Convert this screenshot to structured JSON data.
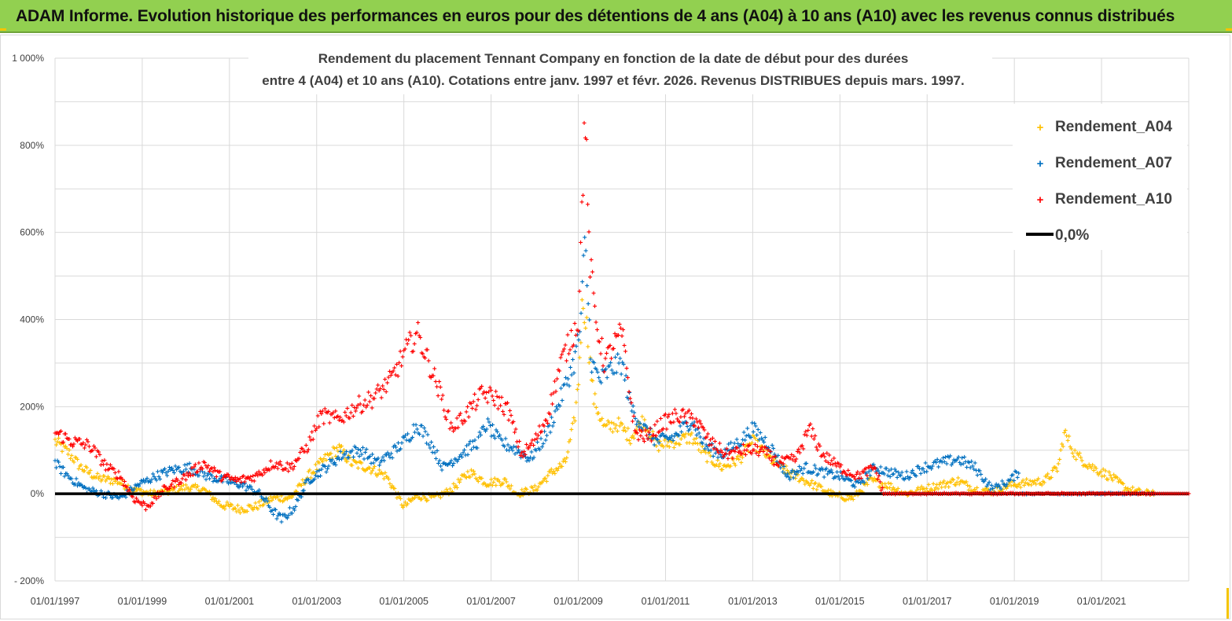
{
  "banner": {
    "title": "ADAM Informe. Evolution historique des performances en euros pour des détentions de 4 ans (A04) à 10 ans (A10) avec les revenus connus distribués"
  },
  "colors": {
    "banner_bg": "#92d050",
    "a04": "#ffc000",
    "a07": "#0070c0",
    "a10": "#ff0000",
    "zero_line": "#000000",
    "grid": "#d9d9d9"
  },
  "chart_data": {
    "type": "scatter",
    "title_lines": [
      "Rendement du placement Tennant Company en fonction de la date de début pour des durées",
      "entre 4 (A04) et 10 ans (A10).  Cotations entre janv. 1997 et févr. 2026. Revenus DISTRIBUES depuis mars. 1997."
    ],
    "y_ticks": [
      "1 000%",
      "800%",
      "600%",
      "400%",
      "200%",
      "0%",
      "- 200%"
    ],
    "y_range": [
      -200,
      1000
    ],
    "x_ticks": [
      "01/01/1997",
      "01/01/1999",
      "01/01/2001",
      "01/01/2003",
      "01/01/2005",
      "01/01/2007",
      "01/01/2009",
      "01/01/2011",
      "01/01/2013",
      "01/01/2015",
      "01/01/2017",
      "01/01/2019",
      "01/01/2021"
    ],
    "x_range": [
      1997.0,
      2023.0
    ],
    "grid": true,
    "legend_position": "top-right",
    "zero_line": {
      "name": "0,0%",
      "value": 0
    },
    "series": [
      {
        "name": "Rendement_A04",
        "color": "#ffc000",
        "end_year": 2022.2,
        "points": [
          [
            1997.0,
            120
          ],
          [
            1997.3,
            95
          ],
          [
            1997.6,
            60
          ],
          [
            1998.0,
            35
          ],
          [
            1998.4,
            30
          ],
          [
            1998.8,
            10
          ],
          [
            1999.2,
            0
          ],
          [
            1999.6,
            5
          ],
          [
            2000.0,
            15
          ],
          [
            2000.4,
            10
          ],
          [
            2000.8,
            -25
          ],
          [
            2001.2,
            -35
          ],
          [
            2001.6,
            -30
          ],
          [
            2002.0,
            -10
          ],
          [
            2002.4,
            -10
          ],
          [
            2002.8,
            40
          ],
          [
            2003.2,
            80
          ],
          [
            2003.5,
            105
          ],
          [
            2003.8,
            70
          ],
          [
            2004.2,
            60
          ],
          [
            2004.6,
            40
          ],
          [
            2005.0,
            -30
          ],
          [
            2005.3,
            -5
          ],
          [
            2005.7,
            -10
          ],
          [
            2006.1,
            10
          ],
          [
            2006.5,
            50
          ],
          [
            2006.9,
            25
          ],
          [
            2007.3,
            30
          ],
          [
            2007.6,
            0
          ],
          [
            2008.0,
            10
          ],
          [
            2008.4,
            50
          ],
          [
            2008.7,
            70
          ],
          [
            2008.9,
            160
          ],
          [
            2009.0,
            250
          ],
          [
            2009.1,
            450
          ],
          [
            2009.2,
            380
          ],
          [
            2009.35,
            220
          ],
          [
            2009.6,
            150
          ],
          [
            2009.9,
            160
          ],
          [
            2010.2,
            130
          ],
          [
            2010.5,
            170
          ],
          [
            2010.8,
            110
          ],
          [
            2011.2,
            120
          ],
          [
            2011.6,
            130
          ],
          [
            2011.9,
            90
          ],
          [
            2012.3,
            60
          ],
          [
            2012.7,
            80
          ],
          [
            2013.0,
            120
          ],
          [
            2013.4,
            80
          ],
          [
            2013.8,
            50
          ],
          [
            2014.2,
            30
          ],
          [
            2014.6,
            10
          ],
          [
            2014.9,
            -5
          ],
          [
            2015.3,
            -10
          ],
          [
            2015.7,
            30
          ],
          [
            2016.1,
            20
          ],
          [
            2016.5,
            0
          ],
          [
            2016.9,
            10
          ],
          [
            2017.3,
            20
          ],
          [
            2017.7,
            30
          ],
          [
            2018.1,
            10
          ],
          [
            2018.5,
            5
          ],
          [
            2018.9,
            20
          ],
          [
            2019.3,
            25
          ],
          [
            2019.7,
            30
          ],
          [
            2020.0,
            60
          ],
          [
            2020.15,
            140
          ],
          [
            2020.4,
            90
          ],
          [
            2020.8,
            60
          ],
          [
            2021.2,
            40
          ],
          [
            2021.6,
            10
          ],
          [
            2022.0,
            0
          ],
          [
            2022.2,
            5
          ]
        ]
      },
      {
        "name": "Rendement_A07",
        "color": "#0070c0",
        "end_year": 2019.1,
        "points": [
          [
            1997.0,
            70
          ],
          [
            1997.3,
            40
          ],
          [
            1997.7,
            10
          ],
          [
            1998.1,
            0
          ],
          [
            1998.5,
            -10
          ],
          [
            1998.9,
            20
          ],
          [
            1999.3,
            40
          ],
          [
            1999.7,
            55
          ],
          [
            2000.1,
            60
          ],
          [
            2000.5,
            40
          ],
          [
            2000.9,
            30
          ],
          [
            2001.3,
            20
          ],
          [
            2001.7,
            0
          ],
          [
            2002.0,
            -40
          ],
          [
            2002.2,
            -60
          ],
          [
            2002.5,
            -30
          ],
          [
            2002.8,
            30
          ],
          [
            2003.2,
            60
          ],
          [
            2003.6,
            90
          ],
          [
            2004.0,
            100
          ],
          [
            2004.4,
            70
          ],
          [
            2004.8,
            100
          ],
          [
            2005.1,
            130
          ],
          [
            2005.3,
            160
          ],
          [
            2005.6,
            120
          ],
          [
            2005.9,
            60
          ],
          [
            2006.3,
            90
          ],
          [
            2006.7,
            120
          ],
          [
            2006.9,
            160
          ],
          [
            2007.2,
            120
          ],
          [
            2007.6,
            100
          ],
          [
            2007.9,
            80
          ],
          [
            2008.3,
            140
          ],
          [
            2008.6,
            220
          ],
          [
            2008.9,
            300
          ],
          [
            2009.05,
            380
          ],
          [
            2009.15,
            580
          ],
          [
            2009.3,
            300
          ],
          [
            2009.5,
            260
          ],
          [
            2009.8,
            290
          ],
          [
            2010.0,
            300
          ],
          [
            2010.2,
            200
          ],
          [
            2010.5,
            150
          ],
          [
            2010.8,
            120
          ],
          [
            2011.2,
            130
          ],
          [
            2011.6,
            170
          ],
          [
            2011.9,
            110
          ],
          [
            2012.3,
            90
          ],
          [
            2012.7,
            120
          ],
          [
            2013.0,
            150
          ],
          [
            2013.4,
            110
          ],
          [
            2013.8,
            40
          ],
          [
            2014.2,
            60
          ],
          [
            2014.6,
            50
          ],
          [
            2015.0,
            40
          ],
          [
            2015.4,
            20
          ],
          [
            2015.8,
            60
          ],
          [
            2016.1,
            50
          ],
          [
            2016.5,
            40
          ],
          [
            2016.9,
            60
          ],
          [
            2017.3,
            70
          ],
          [
            2017.7,
            80
          ],
          [
            2018.1,
            60
          ],
          [
            2018.5,
            10
          ],
          [
            2018.9,
            30
          ],
          [
            2019.1,
            50
          ]
        ]
      },
      {
        "name": "Rendement_A10",
        "color": "#ff0000",
        "end_year": 2016.0,
        "points": [
          [
            1997.0,
            140
          ],
          [
            1997.4,
            120
          ],
          [
            1997.8,
            110
          ],
          [
            1998.2,
            60
          ],
          [
            1998.5,
            40
          ],
          [
            1998.8,
            -10
          ],
          [
            1999.1,
            -30
          ],
          [
            1999.5,
            10
          ],
          [
            2000.0,
            40
          ],
          [
            2000.4,
            70
          ],
          [
            2000.8,
            40
          ],
          [
            2001.2,
            30
          ],
          [
            2001.6,
            40
          ],
          [
            2002.0,
            70
          ],
          [
            2002.4,
            60
          ],
          [
            2002.8,
            110
          ],
          [
            2003.1,
            180
          ],
          [
            2003.5,
            170
          ],
          [
            2003.9,
            200
          ],
          [
            2004.3,
            220
          ],
          [
            2004.7,
            260
          ],
          [
            2005.0,
            320
          ],
          [
            2005.3,
            370
          ],
          [
            2005.5,
            320
          ],
          [
            2005.8,
            240
          ],
          [
            2006.1,
            150
          ],
          [
            2006.4,
            180
          ],
          [
            2006.8,
            230
          ],
          [
            2007.1,
            220
          ],
          [
            2007.4,
            190
          ],
          [
            2007.7,
            90
          ],
          [
            2008.0,
            120
          ],
          [
            2008.3,
            180
          ],
          [
            2008.6,
            300
          ],
          [
            2008.85,
            360
          ],
          [
            2009.0,
            400
          ],
          [
            2009.1,
            700
          ],
          [
            2009.15,
            900
          ],
          [
            2009.25,
            550
          ],
          [
            2009.4,
            400
          ],
          [
            2009.6,
            300
          ],
          [
            2009.8,
            340
          ],
          [
            2010.0,
            370
          ],
          [
            2010.3,
            140
          ],
          [
            2010.6,
            130
          ],
          [
            2010.9,
            160
          ],
          [
            2011.3,
            180
          ],
          [
            2011.7,
            170
          ],
          [
            2012.0,
            120
          ],
          [
            2012.4,
            90
          ],
          [
            2012.8,
            100
          ],
          [
            2013.2,
            100
          ],
          [
            2013.6,
            70
          ],
          [
            2014.0,
            80
          ],
          [
            2014.3,
            150
          ],
          [
            2014.6,
            90
          ],
          [
            2015.0,
            60
          ],
          [
            2015.4,
            40
          ],
          [
            2015.8,
            60
          ],
          [
            2016.0,
            0
          ]
        ]
      }
    ]
  }
}
